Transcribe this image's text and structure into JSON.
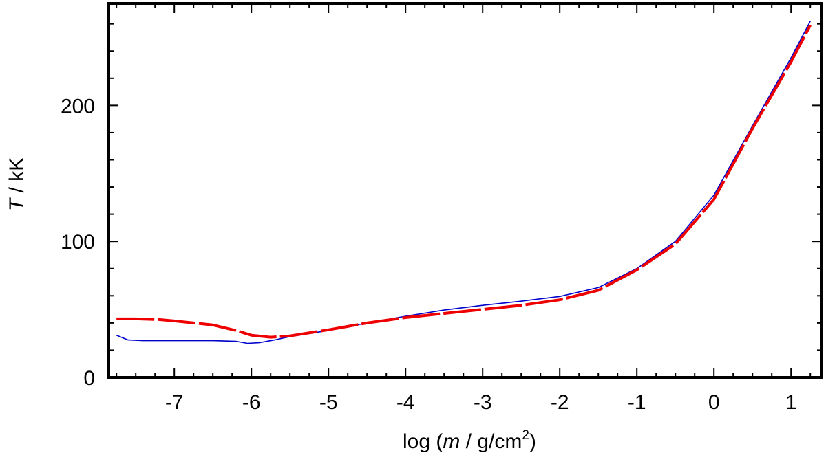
{
  "chart_data": {
    "type": "line",
    "xlabel": {
      "prefix": "log (",
      "var": "m",
      "middle": " / g/cm",
      "sup": "2",
      "suffix": ")"
    },
    "ylabel": {
      "var": "T",
      "unit": " / kK"
    },
    "xlim": [
      -7.85,
      1.4
    ],
    "ylim": [
      0,
      275
    ],
    "x_ticks": [
      -7,
      -6,
      -5,
      -4,
      -3,
      -2,
      -1,
      0,
      1
    ],
    "x_minor_step": 0.25,
    "y_ticks": [
      0,
      100,
      200
    ],
    "y_minor_step": 20,
    "grid": false,
    "series": [
      {
        "color": "#0000cc",
        "style": "solid",
        "points": [
          [
            -7.75,
            31.0
          ],
          [
            -7.6,
            27.5
          ],
          [
            -7.4,
            27.0
          ],
          [
            -7.0,
            27.0
          ],
          [
            -6.5,
            27.0
          ],
          [
            -6.2,
            26.5
          ],
          [
            -6.05,
            25.0
          ],
          [
            -5.9,
            25.5
          ],
          [
            -5.7,
            27.5
          ],
          [
            -5.5,
            30.0
          ],
          [
            -5.0,
            34.5
          ],
          [
            -4.5,
            40.0
          ],
          [
            -4.0,
            45.0
          ],
          [
            -3.5,
            49.5
          ],
          [
            -3.0,
            53.0
          ],
          [
            -2.5,
            56.0
          ],
          [
            -2.0,
            59.5
          ],
          [
            -1.5,
            66.0
          ],
          [
            -1.0,
            80.0
          ],
          [
            -0.5,
            100.0
          ],
          [
            0.0,
            134.0
          ],
          [
            0.5,
            185.0
          ],
          [
            1.0,
            235.0
          ],
          [
            1.25,
            262.0
          ]
        ]
      },
      {
        "color": "#ee0000",
        "style": "dashed",
        "points": [
          [
            -7.75,
            43.0
          ],
          [
            -7.5,
            43.0
          ],
          [
            -7.2,
            42.5
          ],
          [
            -7.0,
            41.5
          ],
          [
            -6.5,
            38.5
          ],
          [
            -6.2,
            34.5
          ],
          [
            -6.0,
            31.0
          ],
          [
            -5.75,
            29.5
          ],
          [
            -5.5,
            30.5
          ],
          [
            -5.0,
            35.0
          ],
          [
            -4.5,
            40.0
          ],
          [
            -4.0,
            44.0
          ],
          [
            -3.5,
            47.0
          ],
          [
            -3.0,
            50.0
          ],
          [
            -2.5,
            53.0
          ],
          [
            -2.0,
            57.0
          ],
          [
            -1.5,
            64.0
          ],
          [
            -1.0,
            79.0
          ],
          [
            -0.5,
            98.0
          ],
          [
            0.0,
            131.0
          ],
          [
            0.5,
            183.0
          ],
          [
            1.0,
            232.0
          ],
          [
            1.25,
            259.0
          ]
        ]
      }
    ]
  }
}
